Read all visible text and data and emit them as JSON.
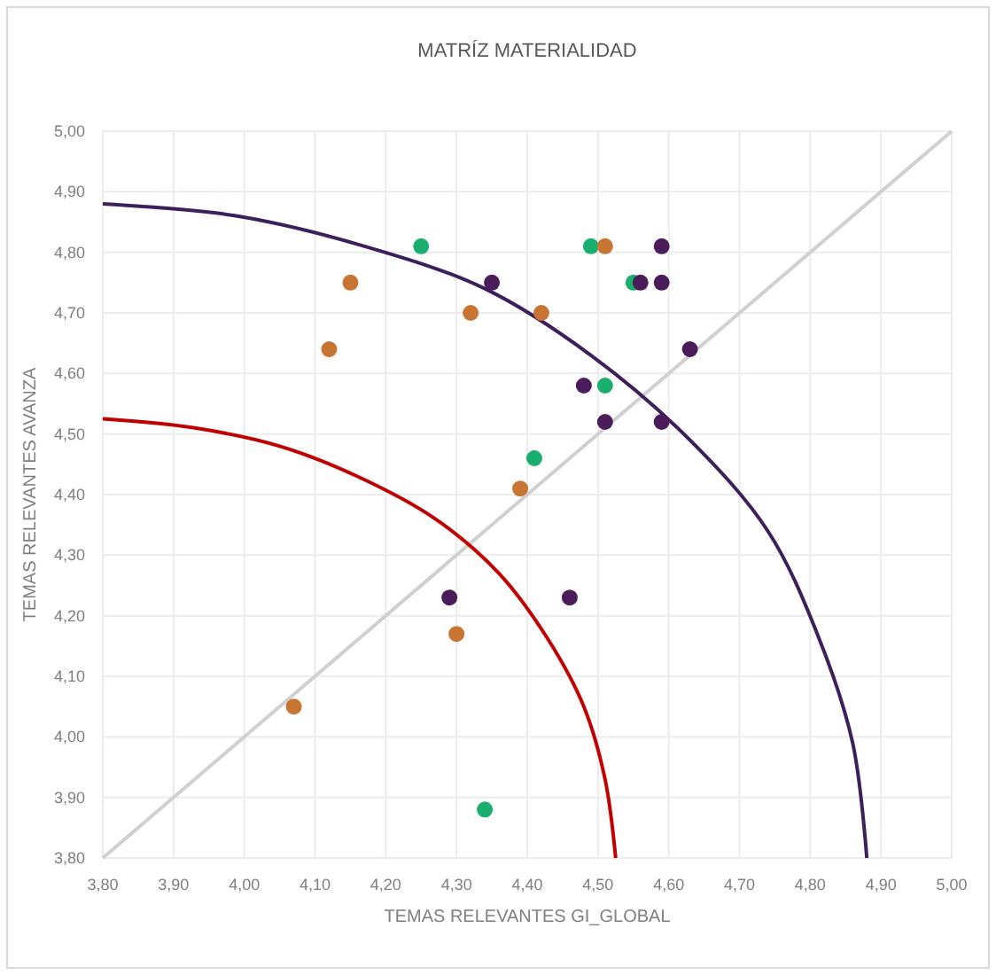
{
  "chart_data": {
    "type": "scatter",
    "title": "MATRÍZ MATERIALIDAD",
    "xlabel": "TEMAS RELEVANTES GI_GLOBAL",
    "ylabel": "TEMAS RELEVANTES AVANZA",
    "xlim": [
      3.8,
      5
    ],
    "ylim": [
      3.8,
      5
    ],
    "xticks": [
      {
        "value": 3.8,
        "label": "3,80"
      },
      {
        "value": 3.9,
        "label": "3,90"
      },
      {
        "value": 4,
        "label": "4,00"
      },
      {
        "value": 4.1,
        "label": "4,10"
      },
      {
        "value": 4.2,
        "label": "4,20"
      },
      {
        "value": 4.3,
        "label": "4,30"
      },
      {
        "value": 4.4,
        "label": "4,40"
      },
      {
        "value": 4.5,
        "label": "4,50"
      },
      {
        "value": 4.6,
        "label": "4,60"
      },
      {
        "value": 4.7,
        "label": "4,70"
      },
      {
        "value": 4.8,
        "label": "4,80"
      },
      {
        "value": 4.9,
        "label": "4,90"
      },
      {
        "value": 5,
        "label": "5,00"
      }
    ],
    "yticks": [
      {
        "value": 3.8,
        "label": "3,80"
      },
      {
        "value": 3.9,
        "label": "3,90"
      },
      {
        "value": 4,
        "label": "4,00"
      },
      {
        "value": 4.1,
        "label": "4,10"
      },
      {
        "value": 4.2,
        "label": "4,20"
      },
      {
        "value": 4.3,
        "label": "4,30"
      },
      {
        "value": 4.4,
        "label": "4,40"
      },
      {
        "value": 4.5,
        "label": "4,50"
      },
      {
        "value": 4.6,
        "label": "4,60"
      },
      {
        "value": 4.7,
        "label": "4,70"
      },
      {
        "value": 4.8,
        "label": "4,80"
      },
      {
        "value": 4.9,
        "label": "4,90"
      },
      {
        "value": 5,
        "label": "5,00"
      }
    ],
    "grid": true,
    "series": [
      {
        "type": "line",
        "color": "#d0d0d0",
        "marker": "none",
        "line_style": "solid",
        "x": [
          3.8,
          5
        ],
        "values": [
          3.8,
          5
        ]
      },
      {
        "type": "line",
        "color": "#c00000",
        "marker": "none",
        "line_style": "solid",
        "x": [
          3.8,
          3.93,
          4.05,
          4.16,
          4.27,
          4.36,
          4.43,
          4.48,
          4.51,
          4.525
        ],
        "values": [
          4.525,
          4.51,
          4.48,
          4.43,
          4.36,
          4.27,
          4.16,
          4.05,
          3.93,
          3.8
        ]
      },
      {
        "type": "line",
        "color": "#3d1f5c",
        "marker": "none",
        "line_style": "solid",
        "x": [
          3.8,
          3.99,
          4.17,
          4.34,
          4.49,
          4.63,
          4.74,
          4.81,
          4.86,
          4.88
        ],
        "values": [
          4.88,
          4.86,
          4.81,
          4.74,
          4.63,
          4.49,
          4.34,
          4.17,
          3.99,
          3.8
        ]
      },
      {
        "color": "#1aae6f",
        "marker": "circle",
        "x": [
          4.25,
          4.49,
          4.55,
          4.51,
          4.41,
          4.34
        ],
        "values": [
          4.81,
          4.81,
          4.75,
          4.58,
          4.46,
          3.88
        ]
      },
      {
        "color": "#c87533",
        "marker": "circle",
        "x": [
          4.15,
          4.32,
          4.12,
          4.51,
          4.42,
          4.39,
          4.3,
          4.07
        ],
        "values": [
          4.75,
          4.7,
          4.64,
          4.81,
          4.7,
          4.41,
          4.17,
          4.05
        ]
      },
      {
        "color": "#4a1d5a",
        "marker": "circle",
        "x": [
          4.35,
          4.59,
          4.56,
          4.59,
          4.63,
          4.48,
          4.51,
          4.59,
          4.29,
          4.46
        ],
        "values": [
          4.75,
          4.81,
          4.75,
          4.75,
          4.64,
          4.58,
          4.52,
          4.52,
          4.23,
          4.23
        ]
      }
    ]
  }
}
